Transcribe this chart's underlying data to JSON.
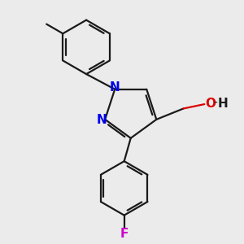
{
  "bg_color": "#ebebeb",
  "bond_color": "#1a1a1a",
  "N_color": "#0000ee",
  "O_color": "#dd0000",
  "F_color": "#cc00cc",
  "lw": 1.6,
  "dbo": 0.055,
  "figsize": [
    3.0,
    3.0
  ],
  "dpi": 100,
  "xlim": [
    -2.6,
    2.8
  ],
  "ylim": [
    -3.2,
    2.4
  ]
}
